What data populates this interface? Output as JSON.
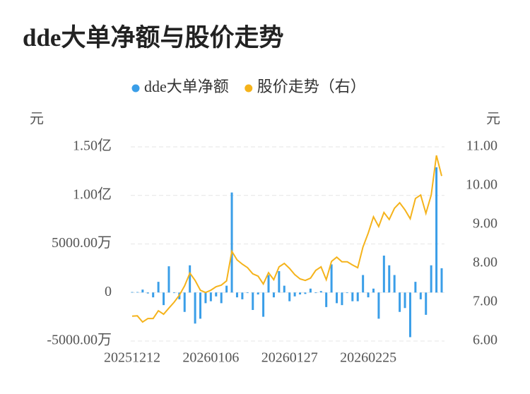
{
  "chart_data": {
    "type": "bar+line",
    "title": "dde大单净额与股价走势",
    "y_unit": "元",
    "y2_unit": "元",
    "categories": [
      "20251212",
      null,
      null,
      null,
      null,
      null,
      null,
      null,
      null,
      null,
      null,
      null,
      null,
      null,
      null,
      "20260106",
      null,
      null,
      null,
      null,
      null,
      null,
      null,
      null,
      null,
      null,
      null,
      null,
      null,
      null,
      "20260127",
      null,
      null,
      null,
      null,
      null,
      null,
      null,
      null,
      null,
      null,
      null,
      null,
      null,
      null,
      "20260225",
      null,
      null,
      null,
      null,
      null,
      null,
      null,
      null,
      null,
      null,
      null,
      null,
      null,
      null
    ],
    "series": [
      {
        "name": "dde大单净额",
        "type": "bar",
        "color": "#3a9ee8",
        "values": [
          50,
          50,
          300,
          -100,
          -500,
          1100,
          -1300,
          2700,
          0,
          -700,
          -2000,
          2800,
          -3200,
          -2700,
          -1100,
          -900,
          -400,
          -1100,
          700,
          10300,
          -500,
          -700,
          0,
          -1800,
          -200,
          -2500,
          1800,
          -500,
          2200,
          700,
          -900,
          -400,
          -200,
          -150,
          400,
          0,
          150,
          -1500,
          2900,
          -1100,
          -1300,
          0,
          -900,
          -900,
          1800,
          -500,
          400,
          -2700,
          3800,
          2800,
          1800,
          -2000,
          -1600,
          -4600,
          1100,
          -700,
          -2300,
          2800,
          12900,
          2500
        ]
      },
      {
        "name": "股价走势（右）",
        "type": "line",
        "axis": "y2",
        "color": "#f5b31b",
        "values": [
          6.64,
          6.65,
          6.49,
          6.58,
          6.58,
          6.78,
          6.69,
          6.85,
          7.0,
          7.18,
          7.42,
          7.75,
          7.56,
          7.31,
          7.25,
          7.31,
          7.4,
          7.44,
          7.55,
          8.31,
          8.09,
          7.98,
          7.89,
          7.73,
          7.67,
          7.47,
          7.76,
          7.58,
          7.91,
          8.0,
          7.87,
          7.71,
          7.6,
          7.56,
          7.62,
          7.82,
          7.91,
          7.58,
          8.05,
          8.16,
          8.04,
          8.04,
          7.96,
          7.89,
          8.42,
          8.78,
          9.2,
          8.95,
          9.31,
          9.13,
          9.42,
          9.56,
          9.38,
          9.15,
          9.67,
          9.76,
          9.29,
          9.76,
          10.78,
          10.25
        ]
      }
    ],
    "ylim": [
      -5000,
      15000
    ],
    "yticks": [
      {
        "value": -5000,
        "label": "-5000.00万"
      },
      0,
      {
        "value": 5000,
        "label": "5000.00万"
      },
      {
        "value": 10000,
        "label": "1.00亿"
      },
      {
        "value": 15000,
        "label": "1.50亿"
      }
    ],
    "y2lim": [
      6,
      11
    ],
    "y2ticks": [
      {
        "value": 6,
        "label": "6.00"
      },
      {
        "value": 7,
        "label": "7.00"
      },
      {
        "value": 8,
        "label": "8.00"
      },
      {
        "value": 9,
        "label": "9.00"
      },
      {
        "value": 10,
        "label": "10.00"
      },
      {
        "value": 11,
        "label": "11.00"
      }
    ],
    "grid": true
  }
}
